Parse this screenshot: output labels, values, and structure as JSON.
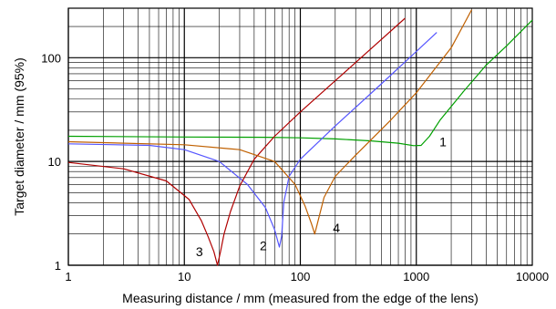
{
  "chart_data": {
    "type": "line",
    "title": "",
    "xlabel": "Measuring distance / mm (measured from the edge of the lens)",
    "ylabel": "Target diameter / mm (95%)",
    "xscale": "log",
    "yscale": "log",
    "xlim": [
      1,
      10000
    ],
    "ylim": [
      1,
      300
    ],
    "grid": true,
    "x_tick_labels": [
      "1",
      "10",
      "100",
      "1000",
      "10000"
    ],
    "y_tick_labels": [
      "1",
      "10",
      "100"
    ],
    "series": [
      {
        "name": "1",
        "color": "#00a000",
        "x": [
          1,
          10,
          50,
          100,
          200,
          400,
          700,
          950,
          1100,
          1300,
          1600,
          2500,
          4000,
          6000,
          10000
        ],
        "y": [
          17.5,
          17.2,
          17.1,
          16.9,
          16.5,
          15.8,
          15.0,
          14.2,
          14.3,
          17.5,
          25.0,
          46.0,
          85.0,
          130.0,
          230.0
        ]
      },
      {
        "name": "2",
        "color": "#5555ff",
        "x": [
          1,
          5,
          10,
          20,
          35,
          50,
          60,
          66,
          69,
          72,
          80,
          100,
          200,
          500,
          1000,
          1500
        ],
        "y": [
          14.8,
          14.3,
          13.0,
          10.0,
          6.0,
          3.6,
          2.2,
          1.5,
          1.9,
          4.0,
          7.2,
          10.5,
          22.0,
          56.0,
          115.0,
          175.0
        ]
      },
      {
        "name": "3",
        "color": "#b00000",
        "x": [
          1,
          3,
          7,
          11,
          14,
          16,
          18,
          19.3,
          20.5,
          22,
          25,
          30,
          40,
          60,
          100,
          200,
          400,
          800
        ],
        "y": [
          9.8,
          8.5,
          6.5,
          4.3,
          2.7,
          1.9,
          1.35,
          1.0,
          1.35,
          2.0,
          3.3,
          5.8,
          10.5,
          17.5,
          30.0,
          60.0,
          120.0,
          240.0
        ]
      },
      {
        "name": "4",
        "color": "#c06000",
        "x": [
          1,
          10,
          30,
          60,
          90,
          110,
          125,
          133,
          140,
          160,
          200,
          300,
          600,
          1000,
          2000,
          3000
        ],
        "y": [
          15.5,
          14.5,
          13.0,
          10.0,
          6.0,
          3.7,
          2.5,
          2.0,
          2.5,
          4.5,
          7.2,
          11.5,
          25.0,
          46.0,
          125.0,
          290.0
        ]
      }
    ],
    "annotations": [
      {
        "text": "1",
        "x": 1700,
        "y": 15.5
      },
      {
        "text": "2",
        "x": 48,
        "y": 1.55
      },
      {
        "text": "3",
        "x": 13.5,
        "y": 1.35
      },
      {
        "text": "4",
        "x": 205,
        "y": 2.3
      }
    ]
  }
}
